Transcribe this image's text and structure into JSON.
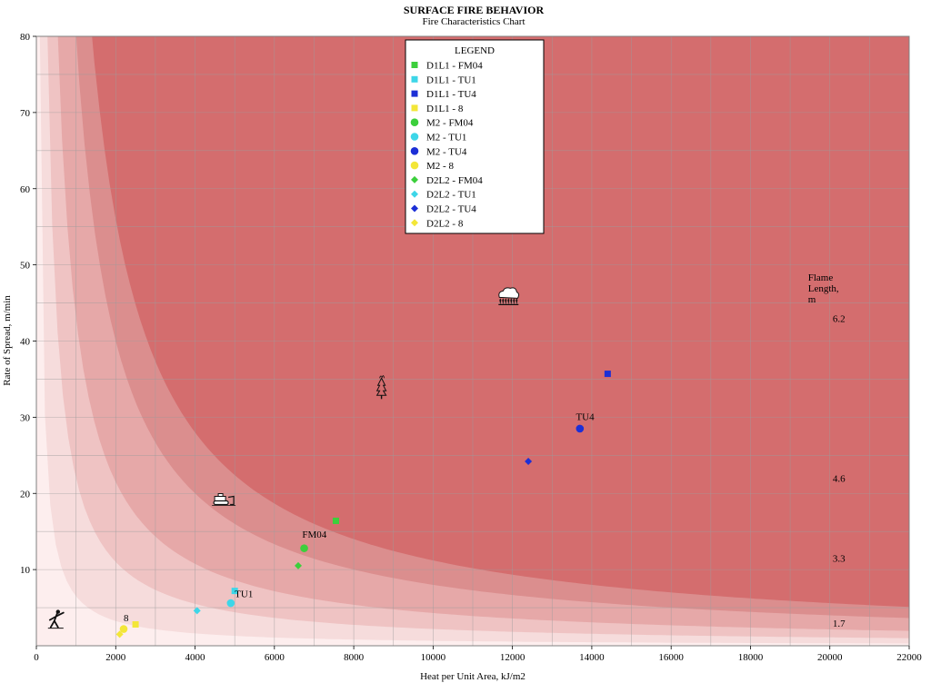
{
  "chart_data": {
    "type": "scatter",
    "title": "SURFACE FIRE BEHAVIOR",
    "subtitle": "Fire Characteristics Chart",
    "xlabel": "Heat per Unit Area, kJ/m2",
    "ylabel": "Rate of Spread, m/min",
    "xlim": [
      0,
      22000
    ],
    "ylim": [
      0,
      80
    ],
    "xticks": [
      0,
      2000,
      4000,
      6000,
      8000,
      10000,
      12000,
      14000,
      16000,
      18000,
      20000,
      22000
    ],
    "yticks": [
      10,
      20,
      30,
      40,
      50,
      60,
      70,
      80
    ],
    "grid": true,
    "legend_title": "LEGEND",
    "legend_position": "top-center",
    "flame_length_title": [
      "Flame",
      "Length,",
      "m"
    ],
    "bands": [
      {
        "label": "1.7",
        "k": 6500,
        "color": "#f6dcdc"
      },
      {
        "label": "3.3",
        "k": 22000,
        "color": "#efc3c3"
      },
      {
        "label": "4.6",
        "k": 43000,
        "color": "#e6a8a8"
      },
      {
        "label": "6.2",
        "k": 80000,
        "color": "#db8e8e"
      },
      {
        "label": "",
        "k": 112000,
        "color": "#d46d6e"
      }
    ],
    "band_label_positions": [
      {
        "label": "6.2",
        "x": 20000,
        "y": 43
      },
      {
        "label": "4.6",
        "x": 20000,
        "y": 22
      },
      {
        "label": "3.3",
        "x": 20000,
        "y": 11.5
      },
      {
        "label": "1.7",
        "x": 20000,
        "y": 3
      }
    ],
    "series": [
      {
        "name": "D1L1 - FM04",
        "marker": "square",
        "color": "#3ccf3c",
        "points": [
          [
            7550,
            16.4
          ]
        ]
      },
      {
        "name": "D1L1 - TU1",
        "marker": "square",
        "color": "#3dd6e8",
        "points": [
          [
            5000,
            7.2
          ]
        ]
      },
      {
        "name": "D1L1 - TU4",
        "marker": "square",
        "color": "#1c2fd6",
        "points": [
          [
            14400,
            35.7
          ]
        ]
      },
      {
        "name": "D1L1 - 8",
        "marker": "square",
        "color": "#f3e638",
        "points": [
          [
            2500,
            2.8
          ]
        ]
      },
      {
        "name": "M2 - FM04",
        "marker": "circle",
        "color": "#3ccf3c",
        "points": [
          [
            6750,
            12.8
          ]
        ]
      },
      {
        "name": "M2 - TU1",
        "marker": "circle",
        "color": "#3dd6e8",
        "points": [
          [
            4900,
            5.6
          ]
        ]
      },
      {
        "name": "M2 - TU4",
        "marker": "circle",
        "color": "#1c2fd6",
        "points": [
          [
            13700,
            28.5
          ]
        ]
      },
      {
        "name": "M2 - 8",
        "marker": "circle",
        "color": "#f3e638",
        "points": [
          [
            2200,
            2.2
          ]
        ]
      },
      {
        "name": "D2L2 - FM04",
        "marker": "diamond",
        "color": "#3ccf3c",
        "points": [
          [
            6600,
            10.5
          ]
        ]
      },
      {
        "name": "D2L2 - TU1",
        "marker": "diamond",
        "color": "#3dd6e8",
        "points": [
          [
            4050,
            4.6
          ]
        ]
      },
      {
        "name": "D2L2 - TU4",
        "marker": "diamond",
        "color": "#1c2fd6",
        "points": [
          [
            12400,
            24.2
          ]
        ]
      },
      {
        "name": "D2L2 - 8",
        "marker": "diamond",
        "color": "#f3e638",
        "points": [
          [
            2100,
            1.5
          ]
        ]
      }
    ],
    "annotations": [
      {
        "text": "FM04",
        "x": 6700,
        "y": 14.2
      },
      {
        "text": "TU1",
        "x": 5000,
        "y": 6.4
      },
      {
        "text": "TU4",
        "x": 13600,
        "y": 29.6
      },
      {
        "text": "8",
        "x": 2200,
        "y": 3.2
      }
    ],
    "pictograms": [
      {
        "name": "hand-crew-icon",
        "x": 500,
        "y": 3.5
      },
      {
        "name": "dozer-icon",
        "x": 4700,
        "y": 18.9
      },
      {
        "name": "torching-tree-icon",
        "x": 8700,
        "y": 33.7
      },
      {
        "name": "crown-fire-icon",
        "x": 11900,
        "y": 45.5
      }
    ]
  }
}
